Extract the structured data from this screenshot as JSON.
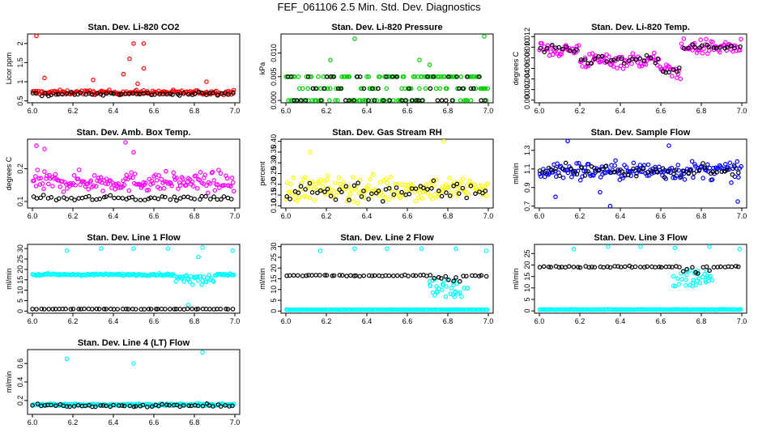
{
  "title": "FEF_061106  2.5 Min. Std. Dev. Diagnostics",
  "colors": {
    "red": "#ff0000",
    "green": "#00cc00",
    "magenta": "#ff00ff",
    "yellow": "#ffff00",
    "blue": "#0000ff",
    "cyan": "#00ffff",
    "black": "#000000"
  },
  "chart_data": [
    {
      "type": "scatter",
      "title": "Stan. Dev. Li-820 CO2",
      "ylabel": "Licor ppm",
      "xlim": [
        6.0,
        7.0
      ],
      "ylim": [
        0.45,
        2.25
      ],
      "xticks": [
        6.0,
        6.2,
        6.4,
        6.6,
        6.8,
        7.0
      ],
      "yticks": [
        0.5,
        1.0,
        1.5,
        2.0
      ],
      "series": [
        {
          "name": "line",
          "color": "#ff0000",
          "baseline": 0.72,
          "spread": 0.06,
          "outliers": [
            [
              6.02,
              2.2
            ],
            [
              6.5,
              2.0
            ],
            [
              6.55,
              2.0
            ],
            [
              6.48,
              1.6
            ],
            [
              6.45,
              1.2
            ],
            [
              6.55,
              1.35
            ],
            [
              6.3,
              1.05
            ],
            [
              6.06,
              1.1
            ],
            [
              6.52,
              0.95
            ],
            [
              6.86,
              1.0
            ]
          ]
        },
        {
          "name": "black",
          "color": "#000000",
          "baseline": 0.68,
          "spread": 0.05
        }
      ]
    },
    {
      "type": "scatter",
      "title": "Stan. Dev. Li-820 Pressure",
      "ylabel": "kPa",
      "xlim": [
        6.0,
        7.0
      ],
      "ylim": [
        -0.0005,
        0.014
      ],
      "xticks": [
        6.0,
        6.2,
        6.4,
        6.6,
        6.8,
        7.0
      ],
      "yticks": [
        0.0,
        0.005,
        0.01
      ],
      "ytick_labels": [
        "0.000",
        "0.005",
        "0.010"
      ],
      "series": [
        {
          "name": "line",
          "color": "#00cc00",
          "levels": [
            0.0,
            0.0025,
            0.005
          ],
          "outliers": [
            [
              6.34,
              0.013
            ],
            [
              6.98,
              0.0135
            ],
            [
              6.22,
              0.0085
            ],
            [
              6.66,
              0.0085
            ],
            [
              6.71,
              0.0075
            ]
          ]
        },
        {
          "name": "black",
          "color": "#000000",
          "levels": [
            0.0,
            0.0025,
            0.005
          ]
        }
      ]
    },
    {
      "type": "scatter",
      "title": "Stan. Dev. Li-820 Temp.",
      "ylabel": "degrees C",
      "xlim": [
        6.0,
        7.0
      ],
      "ylim": [
        -0.0005,
        0.0125
      ],
      "xticks": [
        6.0,
        6.2,
        6.4,
        6.6,
        6.8,
        7.0
      ],
      "yticks": [
        0.0,
        0.002,
        0.004,
        0.006,
        0.008,
        0.01,
        0.012
      ],
      "ytick_labels": [
        "0.000",
        "0.002",
        "0.004",
        "0.006",
        "0.008",
        "0.010",
        "0.012"
      ],
      "series": [
        {
          "name": "line",
          "color": "#ff00ff",
          "segments": [
            [
              6.0,
              6.2,
              0.0095
            ],
            [
              6.2,
              6.6,
              0.0075
            ],
            [
              6.6,
              6.7,
              0.0055
            ],
            [
              6.7,
              7.0,
              0.01
            ]
          ],
          "spread": 0.0015
        },
        {
          "name": "black",
          "color": "#000000",
          "segments": [
            [
              6.0,
              6.2,
              0.0095
            ],
            [
              6.2,
              6.6,
              0.0075
            ],
            [
              6.6,
              6.7,
              0.0055
            ],
            [
              6.7,
              7.0,
              0.01
            ]
          ],
          "spread": 0.0008
        }
      ]
    },
    {
      "type": "scatter",
      "title": "Stan. Dev. Amb. Box Temp.",
      "ylabel": "degrees C",
      "xlim": [
        6.0,
        7.0
      ],
      "ylim": [
        0.08,
        0.29
      ],
      "xticks": [
        6.0,
        6.2,
        6.4,
        6.6,
        6.8,
        7.0
      ],
      "yticks": [
        0.1,
        0.2
      ],
      "series": [
        {
          "name": "line",
          "color": "#ff00ff",
          "baseline": 0.16,
          "spread": 0.03,
          "outliers": [
            [
              6.02,
              0.27
            ],
            [
              6.06,
              0.26
            ],
            [
              6.46,
              0.28
            ],
            [
              6.5,
              0.25
            ]
          ]
        },
        {
          "name": "black",
          "color": "#000000",
          "baseline": 0.11,
          "spread": 0.008
        }
      ]
    },
    {
      "type": "scatter",
      "title": "Stan. Dev. Gas Stream RH",
      "ylabel": "percent",
      "xlim": [
        6.0,
        7.0
      ],
      "ylim": [
        0.09,
        0.41
      ],
      "xticks": [
        6.0,
        6.2,
        6.4,
        6.6,
        6.8,
        7.0
      ],
      "yticks": [
        0.1,
        0.15,
        0.2,
        0.25,
        0.3,
        0.35,
        0.4
      ],
      "ytick_labels": [
        "0.10",
        "0.15",
        "0.20",
        "0.25",
        "0.30",
        "0.35",
        "0.40"
      ],
      "series": [
        {
          "name": "line",
          "color": "#ffff00",
          "baseline": 0.18,
          "spread": 0.06,
          "outliers": [
            [
              6.78,
              0.4
            ],
            [
              6.12,
              0.35
            ]
          ]
        },
        {
          "name": "black",
          "color": "#000000",
          "baseline": 0.17,
          "spread": 0.05
        }
      ]
    },
    {
      "type": "scatter",
      "title": "Stan. Dev. Sample Flow",
      "ylabel": "ml/min",
      "xlim": [
        6.0,
        7.0
      ],
      "ylim": [
        0.68,
        1.42
      ],
      "xticks": [
        6.0,
        6.2,
        6.4,
        6.6,
        6.8,
        7.0
      ],
      "yticks": [
        0.7,
        0.9,
        1.1,
        1.3
      ],
      "series": [
        {
          "name": "line",
          "color": "#0000ff",
          "baseline": 1.08,
          "spread": 0.1,
          "outliers": [
            [
              6.14,
              1.4
            ],
            [
              6.35,
              0.7
            ],
            [
              6.64,
              1.35
            ],
            [
              6.98,
              0.75
            ],
            [
              6.08,
              0.8
            ],
            [
              6.3,
              0.85
            ]
          ]
        },
        {
          "name": "black",
          "color": "#000000",
          "baseline": 1.08,
          "spread": 0.06
        }
      ]
    },
    {
      "type": "scatter",
      "title": "Stan. Dev. Line 1 Flow",
      "ylabel": "ml/min",
      "xlim": [
        6.0,
        7.0
      ],
      "ylim": [
        -1,
        32
      ],
      "xticks": [
        6.0,
        6.2,
        6.4,
        6.6,
        6.8,
        7.0
      ],
      "yticks": [
        0,
        5,
        10,
        15,
        20,
        25,
        30
      ],
      "series": [
        {
          "name": "line",
          "color": "#00ffff",
          "baseline": 17.5,
          "spread": 0.5,
          "dip": [
            6.7,
            6.9,
            3.5
          ],
          "outliers": [
            [
              6.17,
              29
            ],
            [
              6.34,
              30
            ],
            [
              6.5,
              30
            ],
            [
              6.67,
              30
            ],
            [
              6.84,
              30.5
            ],
            [
              6.99,
              29
            ],
            [
              6.82,
              26
            ],
            [
              6.77,
              3
            ]
          ]
        },
        {
          "name": "black",
          "color": "#000000",
          "baseline": 1.0,
          "spread": 0.1
        }
      ]
    },
    {
      "type": "scatter",
      "title": "Stan. Dev. Line 2 Flow",
      "ylabel": "ml/min",
      "xlim": [
        6.0,
        7.0
      ],
      "ylim": [
        -1,
        31
      ],
      "xticks": [
        6.0,
        6.2,
        6.4,
        6.6,
        6.8,
        7.0
      ],
      "yticks": [
        0,
        5,
        10,
        15,
        20,
        25,
        30
      ],
      "series": [
        {
          "name": "line",
          "color": "#00ffff",
          "baseline": 0.6,
          "spread": 0.1,
          "outliers": [
            [
              6.17,
              28
            ],
            [
              6.34,
              29
            ],
            [
              6.5,
              29
            ],
            [
              6.67,
              29
            ],
            [
              6.84,
              29
            ],
            [
              6.99,
              28
            ]
          ],
          "upper_dip": [
            6.7,
            6.9,
            4.5
          ]
        },
        {
          "name": "black",
          "color": "#000000",
          "baseline": 16.5,
          "spread": 0.4,
          "dip": [
            6.72,
            6.88,
            3
          ]
        }
      ]
    },
    {
      "type": "scatter",
      "title": "Stan. Dev. Line 3 Flow",
      "ylabel": "ml/min",
      "xlim": [
        6.0,
        7.0
      ],
      "ylim": [
        -1,
        29
      ],
      "xticks": [
        6.0,
        6.2,
        6.4,
        6.6,
        6.8,
        7.0
      ],
      "yticks": [
        0,
        5,
        10,
        15,
        20,
        25
      ],
      "series": [
        {
          "name": "line",
          "color": "#00ffff",
          "baseline": 0.6,
          "spread": 0.1,
          "outliers": [
            [
              6.17,
              27
            ],
            [
              6.34,
              28
            ],
            [
              6.5,
              28
            ],
            [
              6.67,
              27.5
            ],
            [
              6.84,
              28
            ],
            [
              6.99,
              27
            ]
          ],
          "upper_dip": [
            6.66,
            6.86,
            4
          ]
        },
        {
          "name": "black",
          "color": "#000000",
          "baseline": 19.2,
          "spread": 0.3,
          "dip": [
            6.7,
            6.86,
            3
          ]
        }
      ]
    },
    {
      "type": "scatter",
      "title": "Stan. Dev. Line 4 (LT) Flow",
      "ylabel": "ml/min",
      "xlim": [
        6.0,
        7.0
      ],
      "ylim": [
        0.05,
        0.75
      ],
      "xticks": [
        6.0,
        6.2,
        6.4,
        6.6,
        6.8,
        7.0
      ],
      "yticks": [
        0.2,
        0.4,
        0.6
      ],
      "series": [
        {
          "name": "line",
          "color": "#00ffff",
          "baseline": 0.155,
          "spread": 0.012,
          "outliers": [
            [
              6.17,
              0.65
            ],
            [
              6.5,
              0.6
            ],
            [
              6.84,
              0.72
            ]
          ]
        },
        {
          "name": "black",
          "color": "#000000",
          "baseline": 0.145,
          "spread": 0.015
        }
      ]
    }
  ]
}
